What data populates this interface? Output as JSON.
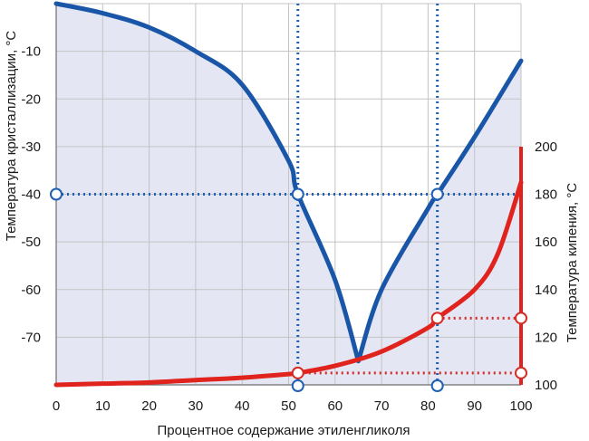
{
  "chart_data": {
    "type": "line",
    "xlabel": "Процентное содержание этиленгликоля",
    "ylabel_left": "Температура кристаллизации, °С",
    "ylabel_right": "Температура кипения, °С",
    "xlim": [
      0,
      100
    ],
    "ylim_left": [
      -80,
      0
    ],
    "ylim_right": [
      100,
      200
    ],
    "x_ticks": [
      "0",
      "10",
      "20",
      "30",
      "40",
      "50",
      "60",
      "70",
      "80",
      "90",
      "100"
    ],
    "y_left_ticks": [
      "-10",
      "-20",
      "-30",
      "-40",
      "-50",
      "-60",
      "-70"
    ],
    "y_right_ticks": [
      "100",
      "120",
      "140",
      "160",
      "180",
      "200"
    ],
    "grid": true,
    "colors": {
      "freezing": "#1a56a8",
      "boiling": "#e0231c",
      "area": "#e4e6f4",
      "grid": "#c3c3c3",
      "guide_blue": "#1f5fb4",
      "guide_red": "#d62b22"
    },
    "series": [
      {
        "axis": "left",
        "x": [
          0,
          10,
          20,
          30,
          40,
          50,
          52,
          60,
          65,
          70,
          80,
          82,
          90,
          100
        ],
        "y": [
          0,
          -2,
          -5,
          -10,
          -17,
          -33,
          -40,
          -58,
          -75,
          -60,
          -43,
          -40,
          -28,
          -12
        ]
      },
      {
        "axis": "right",
        "x": [
          0,
          10,
          20,
          30,
          40,
          50,
          52,
          60,
          70,
          80,
          82,
          90,
          95,
          100
        ],
        "y": [
          100,
          100.5,
          101,
          102,
          103,
          104.5,
          105,
          108,
          114,
          124,
          128,
          140,
          155,
          185
        ]
      }
    ],
    "guides": {
      "freeze_minus40_at_x": [
        52,
        82
      ],
      "boil_at_x": [
        52,
        82
      ],
      "boil_values": [
        105,
        128
      ]
    }
  }
}
